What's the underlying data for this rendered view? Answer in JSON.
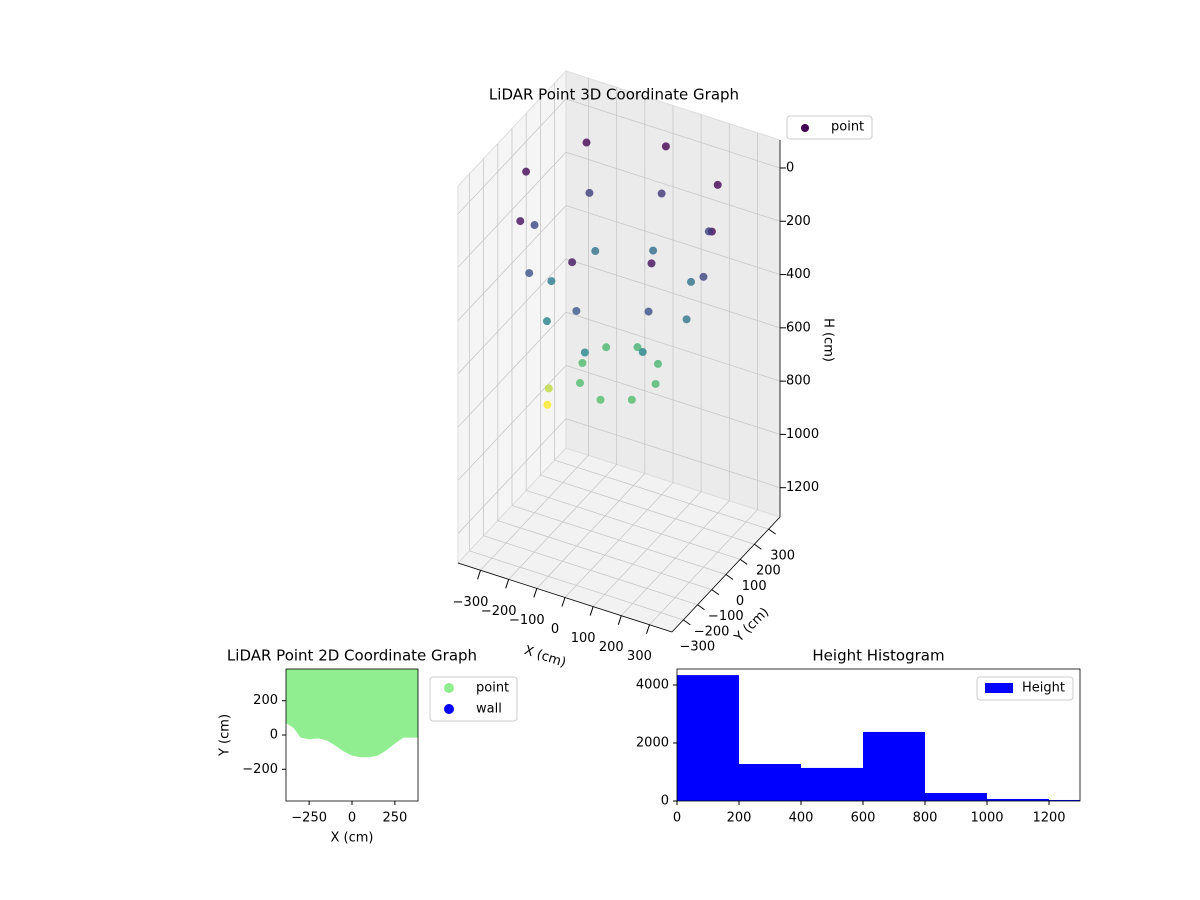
{
  "chart_data": [
    {
      "type": "scatter3d",
      "title": "LiDAR Point 3D Coordinate Graph",
      "xlabel": "X (cm)",
      "ylabel": "Y (cm)",
      "zlabel": "H (cm)",
      "series": [
        {
          "name": "point",
          "cmap": "viridis",
          "x": [
            330,
            233,
            0,
            -233,
            -330,
            -233,
            0,
            233,
            300,
            212,
            0,
            -212,
            -300,
            -212,
            0,
            212,
            240,
            170,
            0,
            -170,
            -240,
            -170,
            0,
            170,
            130,
            92,
            0,
            -92,
            -130,
            -92,
            0,
            92,
            -330,
            -300
          ],
          "y": [
            0,
            233,
            330,
            233,
            0,
            -233,
            -330,
            -233,
            0,
            212,
            300,
            212,
            0,
            -212,
            -300,
            -212,
            0,
            170,
            240,
            170,
            0,
            -170,
            -240,
            -170,
            0,
            92,
            130,
            92,
            0,
            -92,
            -130,
            -92,
            150,
            100
          ],
          "z": [
            40,
            30,
            20,
            30,
            40,
            60,
            80,
            60,
            220,
            200,
            180,
            200,
            230,
            260,
            280,
            260,
            400,
            380,
            360,
            380,
            420,
            450,
            470,
            450,
            680,
            670,
            660,
            670,
            690,
            700,
            710,
            700,
            1000,
            900
          ]
        }
      ],
      "xlim": [
        -380,
        380
      ],
      "ylim": [
        -380,
        380
      ],
      "zlim": [
        -105,
        1310
      ],
      "zinverted": true,
      "xticks": [
        {
          "value": -300,
          "label": "−300"
        },
        {
          "value": -200,
          "label": "−200"
        },
        {
          "value": -100,
          "label": "−100"
        },
        0,
        100,
        200,
        300
      ],
      "yticks": [
        {
          "value": -300,
          "label": "−300"
        },
        {
          "value": -200,
          "label": "−200"
        },
        {
          "value": -100,
          "label": "−100"
        },
        0,
        100,
        200,
        300
      ],
      "zticks": [
        0,
        200,
        400,
        600,
        800,
        1000,
        1200
      ],
      "grid": true,
      "legend": "upper right"
    },
    {
      "type": "area",
      "title": "LiDAR Point 2D Coordinate Graph",
      "xlabel": "X (cm)",
      "ylabel": "Y (cm)",
      "fill_to": "top",
      "series": [
        {
          "name": "point",
          "color": "#90ee90",
          "x": [
            -385,
            -340,
            -300,
            -250,
            -200,
            -150,
            -100,
            -50,
            0,
            50,
            100,
            150,
            200,
            250,
            300,
            385
          ],
          "values": [
            70,
            40,
            -15,
            -25,
            -20,
            -30,
            -60,
            -95,
            -120,
            -130,
            -130,
            -120,
            -90,
            -50,
            -15,
            -15
          ]
        },
        {
          "name": "wall",
          "color": "#0000ff",
          "x": [],
          "values": []
        }
      ],
      "xlim": [
        -385,
        385
      ],
      "ylim": [
        -385,
        385
      ],
      "xticks": [
        {
          "value": -250,
          "label": "−250"
        },
        0,
        250
      ],
      "yticks": [
        {
          "value": -200,
          "label": "−200"
        },
        0,
        200
      ],
      "grid": false,
      "legend": "outside right"
    },
    {
      "type": "histogram",
      "title": "Height Histogram",
      "bins": [
        0,
        200,
        400,
        600,
        800,
        1000,
        1200,
        1400
      ],
      "series": [
        {
          "name": "Height",
          "color": "#0000ff",
          "values": [
            4340,
            1275,
            1140,
            2380,
            275,
            70,
            35
          ]
        }
      ],
      "xlim": [
        0,
        1300
      ],
      "ylim": [
        0,
        4550
      ],
      "xticks": [
        0,
        200,
        400,
        600,
        800,
        1000,
        1200
      ],
      "yticks": [
        0,
        2000,
        4000
      ],
      "grid": false,
      "legend": "upper right"
    }
  ]
}
